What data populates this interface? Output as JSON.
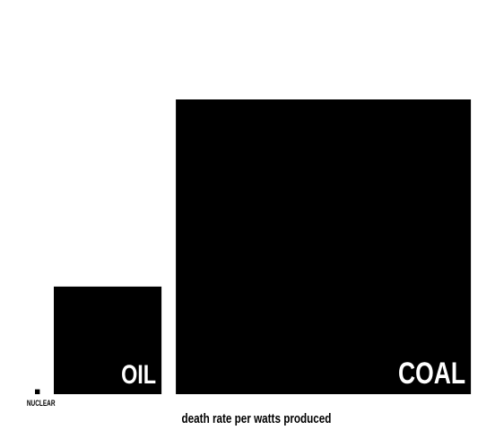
{
  "chart_data": {
    "type": "area-proportional squares",
    "items": [
      {
        "label": "NUCLEAR",
        "value": 1,
        "label_position": "below-left"
      },
      {
        "label": "OIL",
        "value": 500,
        "label_position": "inside-bottom-right"
      },
      {
        "label": "COAL",
        "value": 3750,
        "label_position": "inside-bottom-right"
      }
    ],
    "caption": "death rate per watts produced",
    "colors": {
      "background": "#ffffff",
      "square": "#000000",
      "label_inside": "#ffffff",
      "label_outside": "#000000",
      "caption": "#000000"
    }
  }
}
